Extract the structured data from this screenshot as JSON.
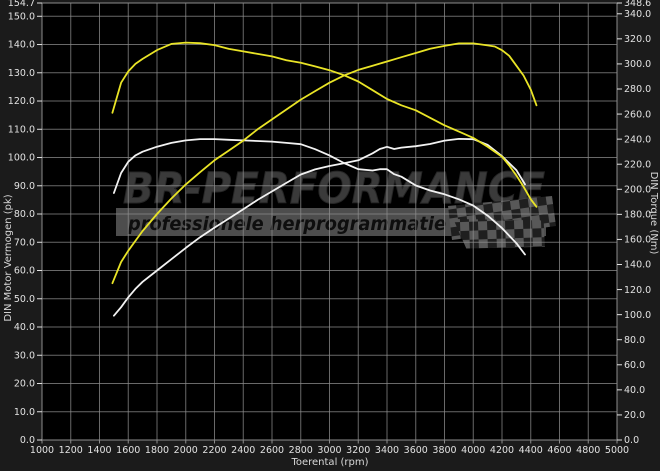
{
  "watermark": {
    "brand": "BR-PERFORMANCE",
    "tagline": "professionele herprogrammatie"
  },
  "colors": {
    "background": "#1b1b1b",
    "plot_background": "#000000",
    "grid": "#8c8c8c",
    "border": "#8c8c8c",
    "tick_text": "#e2e2e2",
    "axis_title_text": "#d8d8d8",
    "curve_yellow": "#e9e426",
    "curve_white": "#f2f2f2",
    "watermark_text": "#3a3a3a",
    "watermark_outline": "#262626",
    "watermark_band": "#4d4d4d",
    "watermark_tagline": "#0e0e0e",
    "checker_dark": "#1f1f1f",
    "checker_light": "#585858"
  },
  "chart_data": {
    "type": "line",
    "title": "",
    "xlabel": "Toerental (rpm)",
    "ylabel_left": "DIN Motor Vermogen (pk)",
    "ylabel_right": "DIN Torque (Nm)",
    "grid": true,
    "legend": false,
    "x_axis": {
      "min": 1000,
      "max": 5000,
      "tick_step": 200
    },
    "y_left_axis": {
      "min": 0,
      "max": 154.7,
      "unit": "pk",
      "ticks": [
        154.7,
        150,
        140,
        130,
        120,
        110,
        100,
        90,
        80,
        70,
        60,
        50,
        40,
        30,
        20,
        10,
        0
      ]
    },
    "y_right_axis": {
      "min": 0,
      "max": 348.6,
      "unit": "Nm",
      "ticks": [
        348.6,
        340,
        320,
        300,
        280,
        260,
        240,
        220,
        200,
        180,
        160,
        140,
        120,
        100,
        80,
        60,
        40,
        20,
        0
      ]
    },
    "series": [
      {
        "name": "torque-white",
        "axis": "right",
        "unit": "Nm",
        "color_key": "curve_white",
        "x": [
          1500,
          1550,
          1600,
          1650,
          1700,
          1800,
          1900,
          2000,
          2100,
          2200,
          2300,
          2400,
          2500,
          2600,
          2700,
          2800,
          2900,
          3000,
          3100,
          3200,
          3300,
          3350,
          3400,
          3450,
          3500,
          3600,
          3700,
          3800,
          3900,
          4000,
          4100,
          4200,
          4300,
          4360
        ],
        "values": [
          197,
          213,
          222,
          227,
          230,
          234,
          237,
          239,
          240,
          240,
          239.5,
          239,
          238.5,
          238,
          237,
          236,
          232,
          227,
          221,
          216,
          215,
          216,
          216,
          212,
          210,
          203,
          199,
          196,
          192,
          187,
          179,
          169,
          157,
          148
        ]
      },
      {
        "name": "power-white",
        "axis": "left",
        "unit": "pk",
        "color_key": "curve_white",
        "x": [
          1500,
          1550,
          1600,
          1650,
          1700,
          1800,
          1900,
          2000,
          2100,
          2200,
          2300,
          2400,
          2500,
          2600,
          2700,
          2800,
          2900,
          3000,
          3100,
          3200,
          3300,
          3350,
          3400,
          3450,
          3500,
          3600,
          3700,
          3800,
          3900,
          4000,
          4100,
          4200,
          4300,
          4360
        ],
        "values": [
          44,
          47,
          50.5,
          53.5,
          56,
          60,
          64,
          68,
          71.8,
          75.2,
          78.4,
          81.7,
          85,
          88,
          91,
          94,
          95.8,
          97,
          98,
          99,
          101.5,
          103,
          103.8,
          103,
          103.5,
          104,
          104.8,
          106,
          106.6,
          106.5,
          104.5,
          100.5,
          95.5,
          90.5
        ]
      },
      {
        "name": "torque-yellow",
        "axis": "right",
        "unit": "Nm",
        "color_key": "curve_yellow",
        "x": [
          1490,
          1550,
          1600,
          1650,
          1700,
          1800,
          1900,
          2000,
          2100,
          2200,
          2300,
          2400,
          2500,
          2600,
          2700,
          2800,
          2900,
          3000,
          3100,
          3200,
          3300,
          3400,
          3500,
          3600,
          3700,
          3800,
          3900,
          4000,
          4100,
          4150,
          4200,
          4250,
          4300,
          4350,
          4400,
          4440
        ],
        "values": [
          261,
          285,
          294,
          300,
          304,
          311,
          316,
          317,
          316.5,
          315,
          312,
          310,
          308,
          306,
          303,
          301,
          298,
          295,
          291,
          286,
          279,
          272,
          267,
          263,
          257,
          251,
          246,
          241,
          234,
          230,
          226,
          219,
          211,
          202,
          192,
          186
        ]
      },
      {
        "name": "power-yellow",
        "axis": "left",
        "unit": "pk",
        "color_key": "curve_yellow",
        "x": [
          1490,
          1550,
          1600,
          1650,
          1700,
          1800,
          1900,
          2000,
          2100,
          2200,
          2300,
          2400,
          2500,
          2600,
          2700,
          2800,
          2900,
          3000,
          3100,
          3200,
          3300,
          3400,
          3500,
          3600,
          3700,
          3800,
          3900,
          4000,
          4100,
          4150,
          4200,
          4250,
          4300,
          4350,
          4400,
          4440
        ],
        "values": [
          55.5,
          63,
          67,
          70.5,
          74,
          80,
          85.5,
          90.5,
          94.8,
          99,
          102.5,
          106,
          110,
          113.5,
          117,
          120.5,
          123.5,
          126.5,
          129,
          131,
          132.5,
          134,
          135.5,
          137,
          138.5,
          139.5,
          140.4,
          140.4,
          139.7,
          139.3,
          138,
          136,
          132.5,
          129,
          124,
          118.5
        ]
      }
    ]
  }
}
